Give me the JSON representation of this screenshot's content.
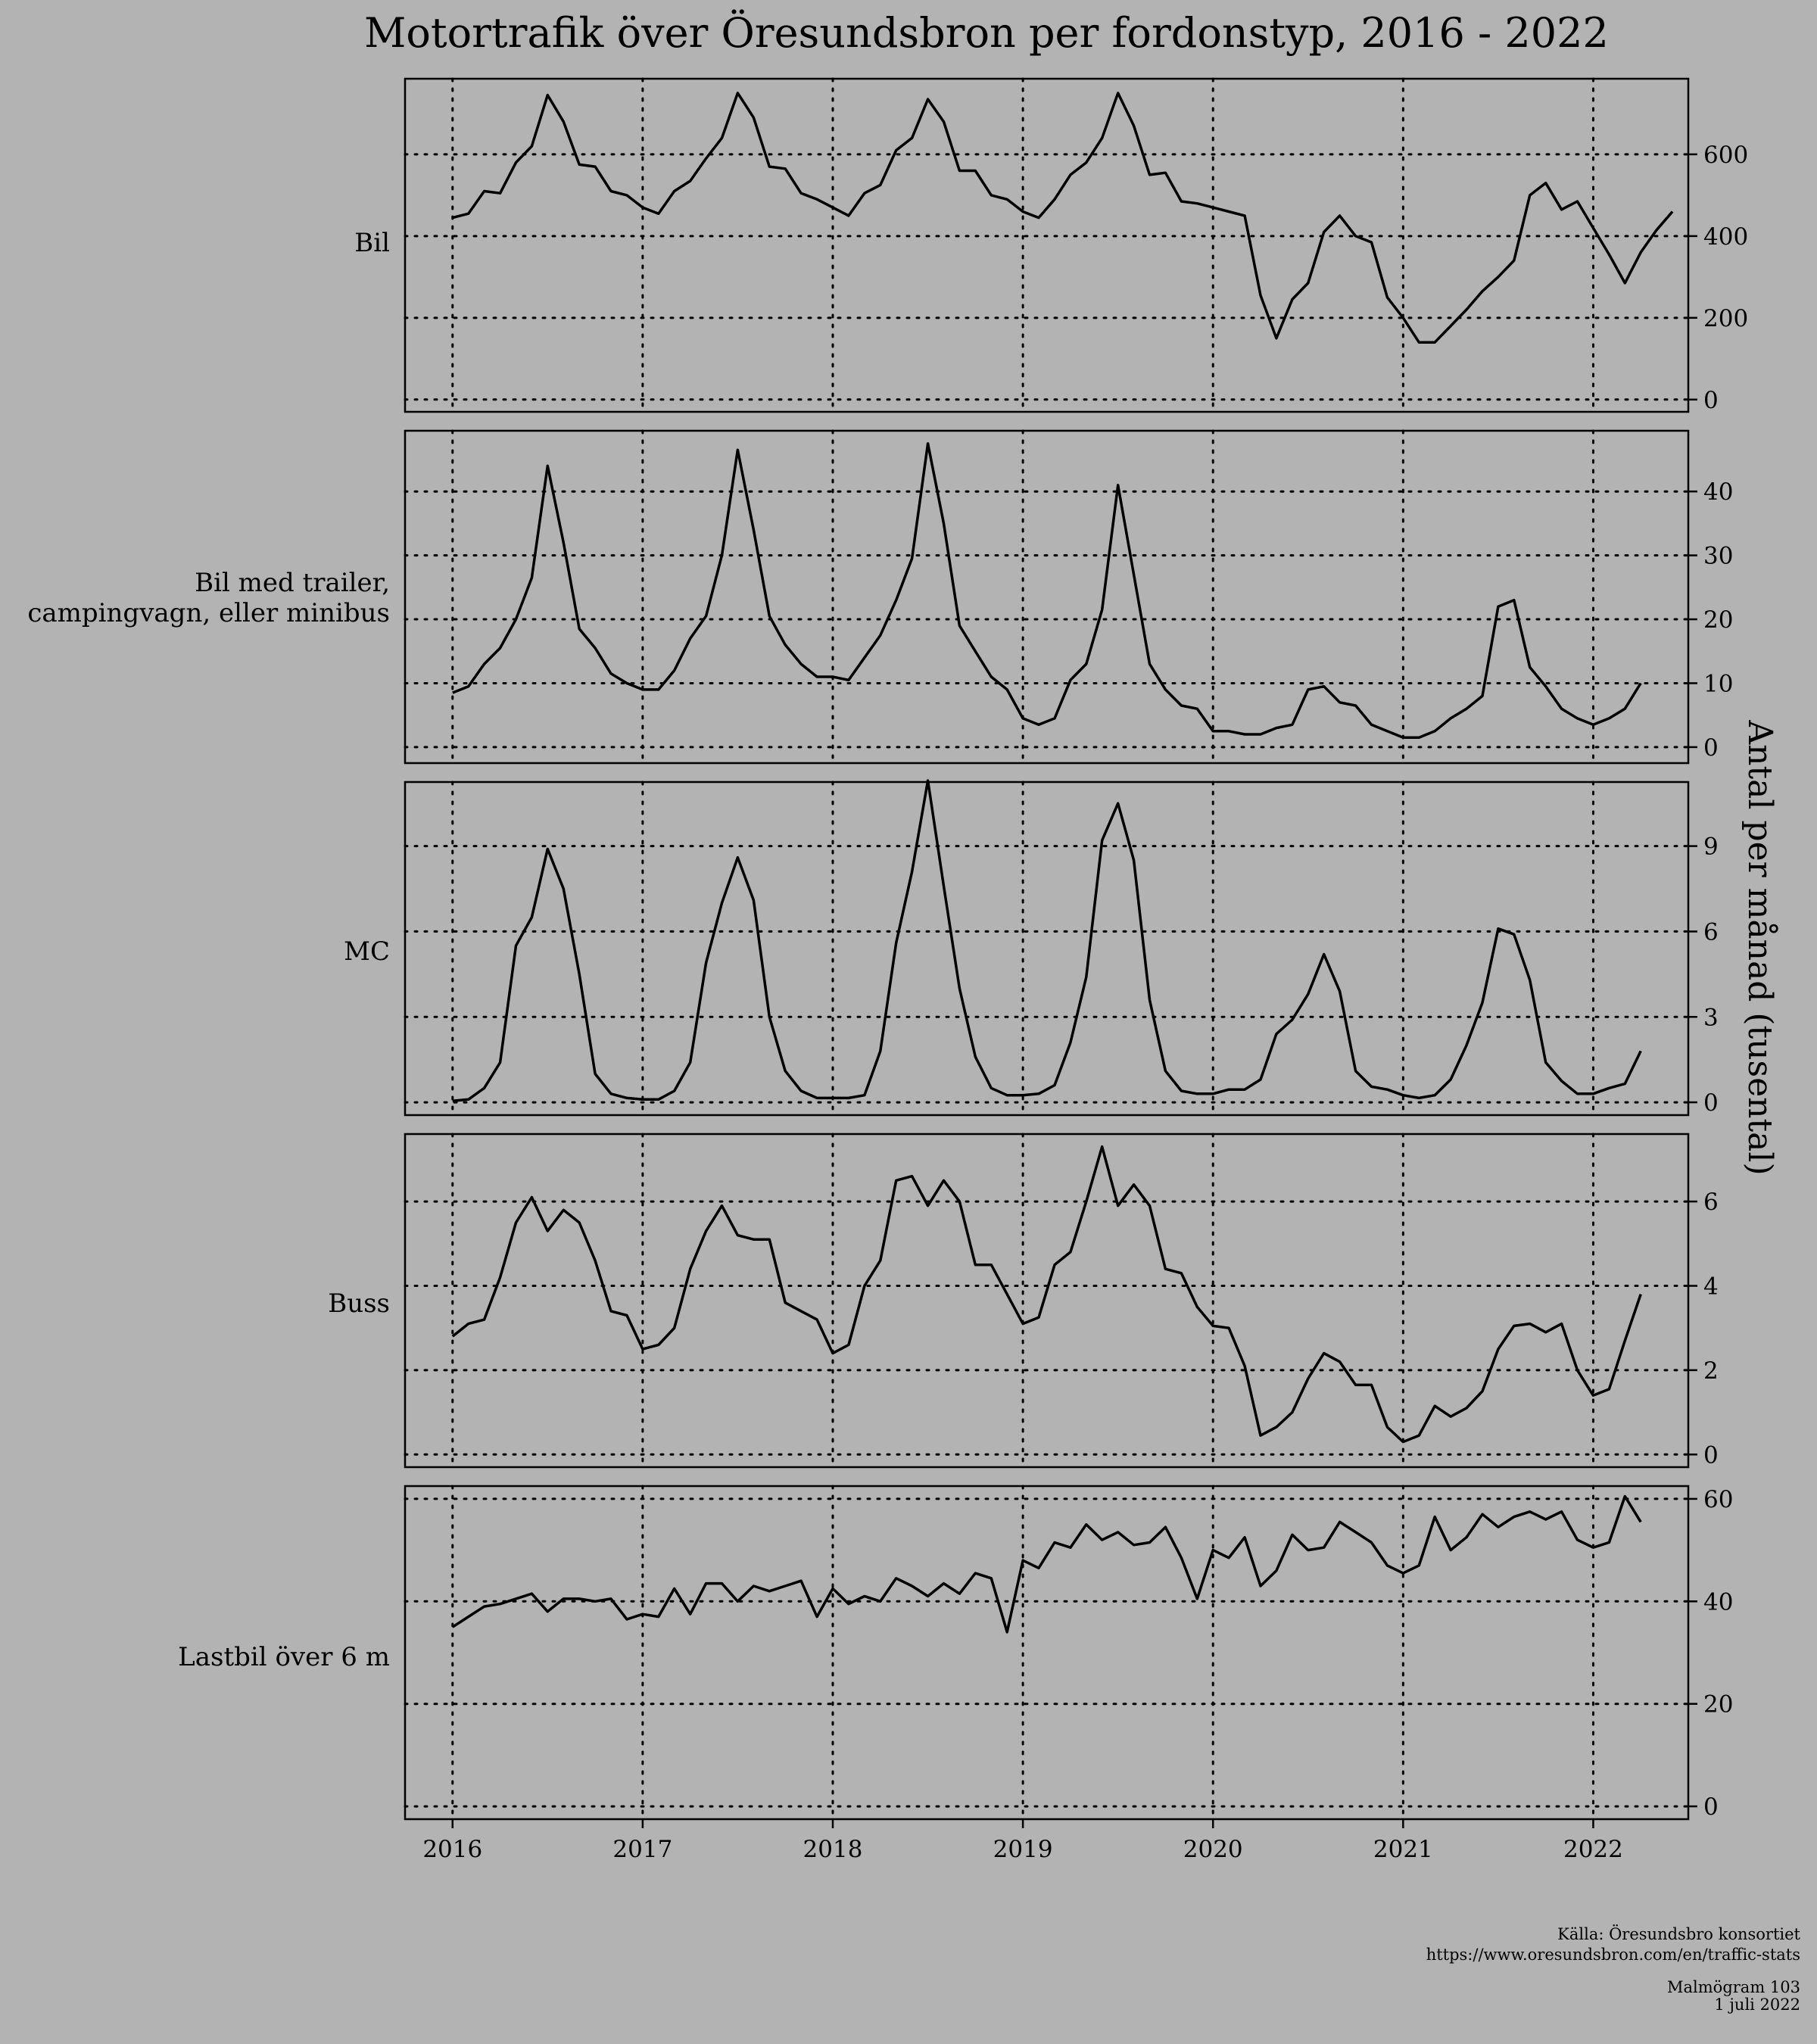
{
  "chart_data": {
    "type": "line",
    "title": "Motortrafik över Öresundsbron per fordonstyp, 2016 - 2022",
    "ylabel": "Antal per månad (tusental)",
    "xlabel": "",
    "x_ticks": [
      "2016",
      "2017",
      "2018",
      "2019",
      "2020",
      "2021",
      "2022"
    ],
    "x_range": [
      "2015-10",
      "2022-07"
    ],
    "x_start": "2016-01",
    "x_step": "month",
    "grid": "dotted",
    "y_axis_side": "right",
    "line_color": "#000000",
    "background_color": "#b3b3b3",
    "panels": [
      {
        "name": "Bil",
        "ylim": [
          -30,
          785
        ],
        "yticks": [
          0,
          200,
          400,
          600
        ],
        "values": [
          445,
          455,
          510,
          505,
          580,
          620,
          745,
          680,
          575,
          570,
          510,
          500,
          470,
          455,
          510,
          535,
          590,
          640,
          750,
          690,
          570,
          565,
          505,
          490,
          470,
          450,
          505,
          525,
          610,
          640,
          735,
          680,
          560,
          560,
          500,
          490,
          460,
          445,
          490,
          550,
          580,
          640,
          750,
          670,
          550,
          555,
          485,
          480,
          470,
          460,
          450,
          255,
          150,
          245,
          285,
          410,
          450,
          400,
          385,
          250,
          200,
          140,
          140,
          180,
          220,
          265,
          300,
          340,
          500,
          530,
          465,
          485,
          420,
          355,
          285,
          360,
          415,
          460
        ]
      },
      {
        "name": "Bil med trailer, campingvagn, eller minibus",
        "ylim": [
          -2.5,
          49.5
        ],
        "yticks": [
          0,
          10,
          20,
          30,
          40
        ],
        "values": [
          8.5,
          9.5,
          13,
          15.5,
          20,
          26.5,
          44,
          32,
          18.5,
          15.5,
          11.5,
          10,
          9,
          9,
          12,
          17,
          20.5,
          30,
          46.5,
          34,
          20.5,
          16,
          13,
          11,
          11,
          10.5,
          14,
          17.5,
          23,
          29.5,
          47.5,
          35,
          19,
          15,
          11,
          9,
          4.5,
          3.5,
          4.5,
          10.5,
          13,
          21.5,
          41,
          27,
          13,
          9,
          6.5,
          6,
          2.5,
          2.5,
          2,
          2,
          3,
          3.5,
          9,
          9.5,
          7,
          6.5,
          3.5,
          2.5,
          1.5,
          1.5,
          2.5,
          4.5,
          6,
          8,
          22,
          23,
          12.5,
          9.5,
          6,
          4.5,
          3.5,
          4.5,
          6,
          10
        ]
      },
      {
        "name": "MC",
        "ylim": [
          -0.45,
          11.25
        ],
        "yticks": [
          0,
          3,
          6,
          9
        ],
        "values": [
          0.05,
          0.1,
          0.5,
          1.4,
          5.5,
          6.5,
          8.9,
          7.5,
          4.5,
          1,
          0.3,
          0.15,
          0.1,
          0.1,
          0.4,
          1.4,
          4.9,
          7,
          8.6,
          7.1,
          3,
          1.1,
          0.4,
          0.15,
          0.15,
          0.15,
          0.25,
          1.8,
          5.6,
          8.1,
          11.3,
          7.6,
          4,
          1.6,
          0.5,
          0.25,
          0.25,
          0.3,
          0.6,
          2.1,
          4.4,
          9.2,
          10.5,
          8.5,
          3.6,
          1.1,
          0.4,
          0.3,
          0.3,
          0.45,
          0.45,
          0.8,
          2.4,
          2.9,
          3.8,
          5.2,
          3.9,
          1.1,
          0.55,
          0.45,
          0.25,
          0.15,
          0.25,
          0.8,
          2,
          3.5,
          6.1,
          5.9,
          4.3,
          1.4,
          0.75,
          0.3,
          0.3,
          0.5,
          0.65,
          1.8
        ]
      },
      {
        "name": "Buss",
        "ylim": [
          -0.3,
          7.6
        ],
        "yticks": [
          0,
          2,
          4,
          6
        ],
        "values": [
          2.8,
          3.1,
          3.2,
          4.2,
          5.5,
          6.1,
          5.3,
          5.8,
          5.5,
          4.6,
          3.4,
          3.3,
          2.5,
          2.6,
          3,
          4.4,
          5.3,
          5.9,
          5.2,
          5.1,
          5.1,
          3.6,
          3.4,
          3.2,
          2.4,
          2.6,
          4,
          4.6,
          6.5,
          6.6,
          5.9,
          6.5,
          6,
          4.5,
          4.5,
          3.8,
          3.1,
          3.25,
          4.5,
          4.8,
          6,
          7.3,
          5.9,
          6.4,
          5.9,
          4.4,
          4.3,
          3.5,
          3.05,
          3,
          2.1,
          0.45,
          0.65,
          1,
          1.8,
          2.4,
          2.2,
          1.65,
          1.65,
          0.65,
          0.3,
          0.45,
          1.15,
          0.9,
          1.1,
          1.5,
          2.5,
          3.05,
          3.1,
          2.9,
          3.1,
          2,
          1.4,
          1.55,
          2.7,
          3.8
        ]
      },
      {
        "name": "Lastbil över 6 m",
        "ylim": [
          -2.5,
          62.5
        ],
        "yticks": [
          0,
          20,
          40,
          60
        ],
        "values": [
          35,
          37,
          39,
          39.5,
          40.5,
          41.5,
          38,
          40.5,
          40.5,
          40,
          40.5,
          36.5,
          37.5,
          37,
          42.5,
          37.5,
          43.5,
          43.5,
          40,
          43,
          42,
          43,
          44,
          37,
          42.5,
          39.5,
          41,
          40,
          44.5,
          43,
          41,
          43.5,
          41.5,
          45.5,
          44.5,
          34,
          48,
          46.5,
          51.5,
          50.5,
          55,
          52,
          53.5,
          51,
          51.5,
          54.5,
          48.5,
          40.5,
          50,
          48.5,
          52.5,
          43,
          46,
          53,
          50,
          50.5,
          55.5,
          53.5,
          51.5,
          47,
          45.5,
          47,
          56.5,
          50,
          52.5,
          57,
          54.5,
          56.5,
          57.5,
          56,
          57.5,
          52,
          50.5,
          51.5,
          60.5,
          55.5
        ]
      }
    ]
  },
  "caption": {
    "source_line1": "Källa: Öresundsbro konsortiet",
    "source_line2": "https://www.oresundsbron.com/en/traffic-stats",
    "credit_line1": "Malmögram 103",
    "credit_line2": "1 juli 2022"
  }
}
